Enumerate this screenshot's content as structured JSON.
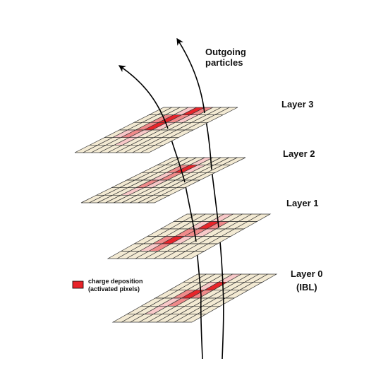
{
  "labels": {
    "outgoing_line1": "Outgoing",
    "outgoing_line2": "particles",
    "layer3": "Layer 3",
    "layer2": "Layer 2",
    "layer1": "Layer 1",
    "layer0": "Layer 0",
    "layer0_sub": "(IBL)"
  },
  "legend": {
    "line1": "charge deposition",
    "line2": "(activated pixels)",
    "swatch_color": "#e8242a"
  },
  "colors": {
    "pixel_base": "#f3ead3",
    "grid_line": "#333333",
    "track": "#000000",
    "hit_light": "#f8c8c8",
    "hit_medium": "#f08a8a",
    "hit_dark": "#e8242a"
  },
  "grid": {
    "cols": 9,
    "rows": 6
  }
}
